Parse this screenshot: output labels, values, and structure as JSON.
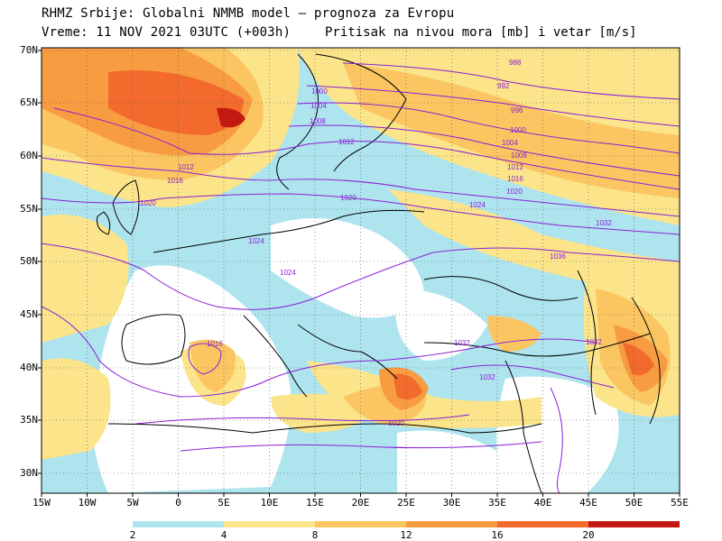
{
  "header": {
    "line1": "RHMZ Srbije: Globalni NMMB model — prognoza za Evropu",
    "line2_left": "Vreme: 11 NOV 2021 03UTC (+003h)",
    "line2_right": "Pritisak na nivou mora [mb] i vetar [m/s]"
  },
  "axes": {
    "lat_labels": [
      "70N",
      "65N",
      "60N",
      "55N",
      "50N",
      "45N",
      "40N",
      "35N",
      "30N"
    ],
    "lon_labels": [
      "15W",
      "10W",
      "5W",
      "0",
      "5E",
      "10E",
      "15E",
      "20E",
      "25E",
      "30E",
      "35E",
      "40E",
      "45E",
      "50E",
      "55E"
    ]
  },
  "colorbar": {
    "labels": [
      "2",
      "4",
      "8",
      "12",
      "16",
      "20"
    ],
    "colors": [
      "#aee4ee",
      "#fbe48a",
      "#fbc662",
      "#f89c42",
      "#f26a2c",
      "#c21a10"
    ]
  },
  "isobars": [
    {
      "label": "988"
    },
    {
      "label": "992"
    },
    {
      "label": "996"
    },
    {
      "label": "1000"
    },
    {
      "label": "1004"
    },
    {
      "label": "1008"
    },
    {
      "label": "1012"
    },
    {
      "label": "1016"
    },
    {
      "label": "1020"
    },
    {
      "label": "1024"
    },
    {
      "label": "1032"
    },
    {
      "label": "1036"
    }
  ],
  "colors": {
    "isobar": "#8b1fd6",
    "coast": "#000000",
    "grid": "#555555",
    "land_bg": "#ffffff"
  }
}
